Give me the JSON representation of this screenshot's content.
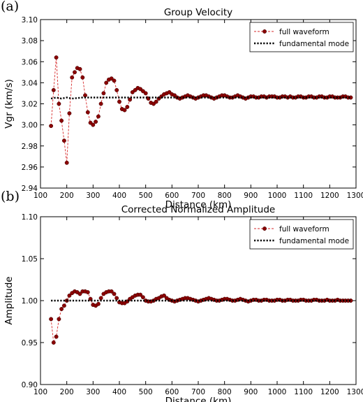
{
  "panel_a": {
    "letter": "(a)"
  },
  "panel_b": {
    "letter": "(b)"
  },
  "chart_data": [
    {
      "type": "line",
      "title": "Group Velocity",
      "xlabel": "Distance (km)",
      "ylabel": "Vgr (km/s)",
      "xlim": [
        100,
        1300
      ],
      "ylim": [
        2.94,
        3.1
      ],
      "xticks": [
        100,
        200,
        300,
        400,
        500,
        600,
        700,
        800,
        900,
        1000,
        1100,
        1200,
        1300
      ],
      "yticks": [
        2.94,
        2.96,
        2.98,
        3.0,
        3.02,
        3.04,
        3.06,
        3.08,
        3.1
      ],
      "ytick_labels": [
        "2.94",
        "2.96",
        "2.98",
        "3.00",
        "3.02",
        "3.04",
        "3.06",
        "3.08",
        "3.10"
      ],
      "legend_position": "top-right",
      "grid": false,
      "series": [
        {
          "name": "full waveform",
          "style": "dashed-with-markers",
          "color": "#d62728",
          "marker_color": "#8b0000",
          "x": [
            140,
            150,
            160,
            170,
            180,
            190,
            200,
            210,
            220,
            230,
            240,
            250,
            260,
            270,
            280,
            290,
            300,
            310,
            320,
            330,
            340,
            350,
            360,
            370,
            380,
            390,
            400,
            410,
            420,
            430,
            440,
            450,
            460,
            470,
            480,
            490,
            500,
            510,
            520,
            530,
            540,
            550,
            560,
            570,
            580,
            590,
            600,
            610,
            620,
            630,
            640,
            650,
            660,
            670,
            680,
            690,
            700,
            710,
            720,
            730,
            740,
            750,
            760,
            770,
            780,
            790,
            800,
            810,
            820,
            830,
            840,
            850,
            860,
            870,
            880,
            890,
            900,
            910,
            920,
            930,
            940,
            950,
            960,
            970,
            980,
            990,
            1000,
            1010,
            1020,
            1030,
            1040,
            1050,
            1060,
            1070,
            1080,
            1090,
            1100,
            1110,
            1120,
            1130,
            1140,
            1150,
            1160,
            1170,
            1180,
            1190,
            1200,
            1210,
            1220,
            1230,
            1240,
            1250,
            1260,
            1270,
            1280
          ],
          "y": [
            2.999,
            3.033,
            3.064,
            3.02,
            3.004,
            2.985,
            2.964,
            3.011,
            3.045,
            3.05,
            3.054,
            3.053,
            3.045,
            3.028,
            3.012,
            3.002,
            3.0,
            3.003,
            3.008,
            3.02,
            3.03,
            3.04,
            3.043,
            3.044,
            3.042,
            3.033,
            3.022,
            3.015,
            3.014,
            3.017,
            3.024,
            3.031,
            3.033,
            3.035,
            3.034,
            3.032,
            3.03,
            3.025,
            3.021,
            3.02,
            3.022,
            3.025,
            3.027,
            3.029,
            3.03,
            3.031,
            3.029,
            3.028,
            3.026,
            3.025,
            3.026,
            3.027,
            3.028,
            3.027,
            3.026,
            3.025,
            3.026,
            3.027,
            3.028,
            3.028,
            3.027,
            3.026,
            3.025,
            3.026,
            3.027,
            3.028,
            3.028,
            3.027,
            3.026,
            3.026,
            3.027,
            3.028,
            3.027,
            3.026,
            3.025,
            3.026,
            3.027,
            3.027,
            3.026,
            3.026,
            3.027,
            3.027,
            3.026,
            3.027,
            3.027,
            3.027,
            3.026,
            3.026,
            3.027,
            3.027,
            3.026,
            3.027,
            3.026,
            3.026,
            3.027,
            3.027,
            3.026,
            3.026,
            3.027,
            3.027,
            3.026,
            3.026,
            3.027,
            3.027,
            3.026,
            3.026,
            3.027,
            3.027,
            3.026,
            3.026,
            3.026,
            3.027,
            3.027,
            3.026,
            3.026
          ]
        },
        {
          "name": "fundamental mode",
          "style": "dotted",
          "color": "#000000",
          "x": [
            140,
            160,
            180,
            200,
            220,
            260,
            300,
            400,
            500,
            600,
            700,
            800,
            900,
            1000,
            1100,
            1200,
            1280
          ],
          "y": [
            3.025,
            3.026,
            3.025,
            3.026,
            3.025,
            3.026,
            3.026,
            3.026,
            3.026,
            3.026,
            3.026,
            3.026,
            3.026,
            3.026,
            3.026,
            3.026,
            3.026
          ]
        }
      ]
    },
    {
      "type": "line",
      "title": "Corrected Normalized Amplitude",
      "xlabel": "Distance (km)",
      "ylabel": "Amplitude",
      "xlim": [
        100,
        1300
      ],
      "ylim": [
        0.9,
        1.1
      ],
      "xticks": [
        100,
        200,
        300,
        400,
        500,
        600,
        700,
        800,
        900,
        1000,
        1100,
        1200,
        1300
      ],
      "yticks": [
        0.9,
        0.95,
        1.0,
        1.05,
        1.1
      ],
      "ytick_labels": [
        "0.90",
        "0.95",
        "1.00",
        "1.05",
        "1.10"
      ],
      "legend_position": "top-right",
      "grid": false,
      "series": [
        {
          "name": "full waveform",
          "style": "dashed-with-markers",
          "color": "#d62728",
          "marker_color": "#8b0000",
          "x": [
            140,
            150,
            160,
            170,
            180,
            190,
            200,
            210,
            220,
            230,
            240,
            250,
            260,
            270,
            280,
            290,
            300,
            310,
            320,
            330,
            340,
            350,
            360,
            370,
            380,
            390,
            400,
            410,
            420,
            430,
            440,
            450,
            460,
            470,
            480,
            490,
            500,
            510,
            520,
            530,
            540,
            550,
            560,
            570,
            580,
            590,
            600,
            610,
            620,
            630,
            640,
            650,
            660,
            670,
            680,
            690,
            700,
            710,
            720,
            730,
            740,
            750,
            760,
            770,
            780,
            790,
            800,
            810,
            820,
            830,
            840,
            850,
            860,
            870,
            880,
            890,
            900,
            910,
            920,
            930,
            940,
            950,
            960,
            970,
            980,
            990,
            1000,
            1010,
            1020,
            1030,
            1040,
            1050,
            1060,
            1070,
            1080,
            1090,
            1100,
            1110,
            1120,
            1130,
            1140,
            1150,
            1160,
            1170,
            1180,
            1190,
            1200,
            1210,
            1220,
            1230,
            1240,
            1250,
            1260,
            1270,
            1280
          ],
          "y": [
            0.978,
            0.95,
            0.957,
            0.978,
            0.99,
            0.994,
            1.0,
            1.006,
            1.009,
            1.011,
            1.01,
            1.008,
            1.011,
            1.011,
            1.01,
            1.002,
            0.995,
            0.994,
            0.996,
            1.003,
            1.008,
            1.01,
            1.011,
            1.011,
            1.008,
            1.003,
            0.998,
            0.997,
            0.997,
            0.999,
            1.002,
            1.004,
            1.006,
            1.007,
            1.007,
            1.004,
            1.0,
            0.999,
            0.999,
            1.0,
            1.002,
            1.003,
            1.005,
            1.006,
            1.003,
            1.001,
            1.0,
            0.999,
            1.0,
            1.001,
            1.002,
            1.003,
            1.003,
            1.002,
            1.001,
            1.0,
            0.999,
            1.0,
            1.001,
            1.002,
            1.003,
            1.002,
            1.001,
            1.0,
            1.0,
            1.001,
            1.002,
            1.002,
            1.001,
            1.0,
            1.0,
            1.001,
            1.002,
            1.001,
            1.0,
            0.999,
            1.0,
            1.001,
            1.001,
            1.0,
            1.0,
            1.001,
            1.001,
            1.0,
            1.0,
            1.0,
            1.001,
            1.001,
            1.0,
            1.0,
            1.001,
            1.001,
            1.0,
            1.0,
            1.0,
            1.001,
            1.001,
            1.0,
            1.0,
            1.0,
            1.001,
            1.001,
            1.0,
            1.0,
            1.0,
            1.001,
            1.0,
            1.0,
            1.0,
            1.001,
            1.0,
            1.0,
            1.0,
            1.0,
            1.0
          ]
        },
        {
          "name": "fundamental mode",
          "style": "dotted",
          "color": "#000000",
          "x": [
            140,
            200,
            300,
            400,
            500,
            600,
            700,
            800,
            900,
            1000,
            1100,
            1200,
            1280
          ],
          "y": [
            1.0,
            1.0,
            1.0,
            1.0,
            1.0,
            1.0,
            1.0,
            1.0,
            1.0,
            1.0,
            1.0,
            1.0,
            1.0
          ]
        }
      ]
    }
  ]
}
